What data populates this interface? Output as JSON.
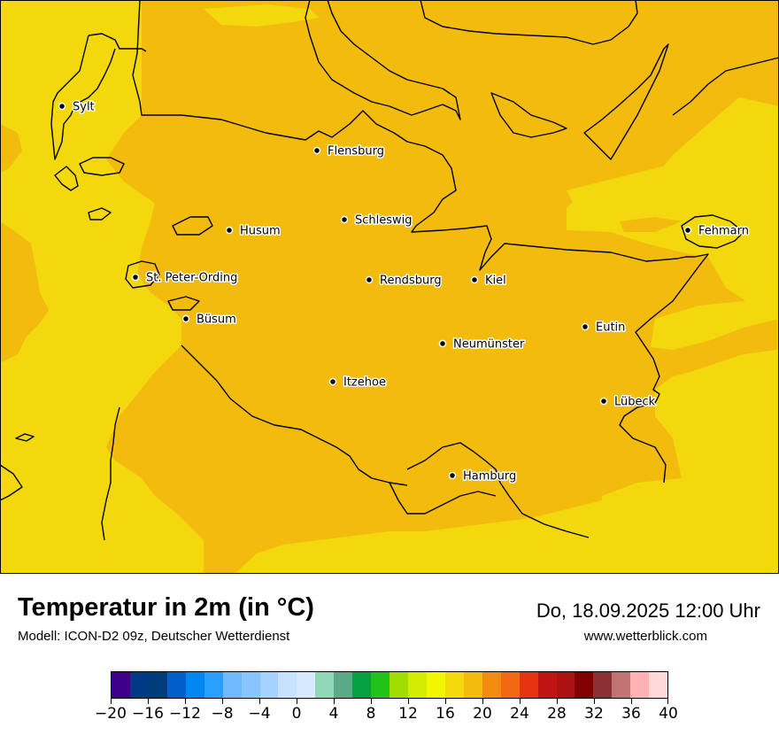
{
  "map": {
    "cities": [
      {
        "name": "Sylt"
      },
      {
        "name": "Flensburg"
      },
      {
        "name": "Schleswig"
      },
      {
        "name": "Husum"
      },
      {
        "name": "Fehmarn"
      },
      {
        "name": "St. Peter-Ording"
      },
      {
        "name": "Rendsburg"
      },
      {
        "name": "Kiel"
      },
      {
        "name": "Büsum"
      },
      {
        "name": "Eutin"
      },
      {
        "name": "Neumünster"
      },
      {
        "name": "Itzehoe"
      },
      {
        "name": "Lübeck"
      },
      {
        "name": "Hamburg"
      }
    ],
    "colors": {
      "land_warm": "#f3bb0e",
      "sea_mild": "#f3d80d",
      "coastline": "#000000"
    }
  },
  "header": {
    "title": "Temperatur in 2m (in °C)",
    "subtitle": "Modell: ICON-D2 09z, Deutscher Wetterdienst",
    "datetime": "Do, 18.09.2025 12:00 Uhr",
    "website": "www.wetterblick.com"
  },
  "legend": {
    "min": -20,
    "max": 40,
    "step": 2,
    "tick_labels": [
      "−20",
      "−16",
      "−12",
      "−8",
      "−4",
      "0",
      "4",
      "8",
      "12",
      "16",
      "20",
      "24",
      "28",
      "32",
      "36",
      "40"
    ],
    "colors": [
      "#3c0089",
      "#003a85",
      "#003c7c",
      "#005fc8",
      "#0087f2",
      "#27a0ff",
      "#6fbaff",
      "#88c4ff",
      "#a6d2ff",
      "#c6e2ff",
      "#d7e9ff",
      "#91d8b7",
      "#5aaa86",
      "#06a23f",
      "#22c216",
      "#a2dd00",
      "#d2ec00",
      "#f2f700",
      "#f3d80d",
      "#f3bb0e",
      "#f38b10",
      "#f36812",
      "#e63411",
      "#be1414",
      "#ad1212",
      "#810000",
      "#8b3134",
      "#c17273",
      "#ffb1b3",
      "#ffd8da"
    ]
  }
}
